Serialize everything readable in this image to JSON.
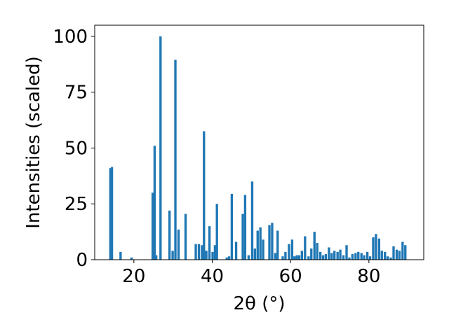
{
  "chart_data": {
    "type": "bar",
    "title": "",
    "xlabel": "2θ (°)",
    "ylabel": "Intensities (scaled)",
    "xlim": [
      10,
      94
    ],
    "ylim": [
      0,
      105
    ],
    "xticks": [
      20,
      40,
      60,
      80
    ],
    "yticks": [
      0,
      25,
      50,
      75,
      100
    ],
    "grid": false,
    "bar_color": "#1f77b4",
    "bar_width": 0.6,
    "x": [
      14.0,
      14.4,
      16.6,
      19.4,
      24.8,
      25.3,
      25.7,
      26.8,
      29.1,
      29.9,
      30.6,
      31.4,
      33.2,
      35.8,
      36.6,
      37.4,
      37.9,
      38.5,
      39.3,
      40.1,
      40.7,
      41.2,
      43.7,
      44.3,
      45.0,
      46.1,
      47.8,
      48.4,
      49.3,
      50.2,
      50.9,
      51.6,
      52.3,
      53.0,
      54.6,
      55.3,
      56.1,
      56.7,
      58.0,
      58.7,
      59.6,
      60.4,
      61.0,
      61.6,
      62.2,
      62.9,
      63.7,
      64.6,
      65.3,
      66.1,
      66.8,
      67.6,
      68.3,
      69.0,
      69.8,
      70.5,
      71.2,
      72.0,
      72.7,
      73.5,
      74.3,
      75.0,
      75.8,
      76.6,
      77.3,
      78.1,
      78.8,
      79.6,
      80.3,
      81.1,
      81.8,
      82.6,
      83.3,
      84.1,
      84.8,
      85.6,
      86.3,
      87.1,
      87.8,
      88.6,
      89.3
    ],
    "values": [
      41,
      41.5,
      3.5,
      1,
      30,
      51,
      2,
      100,
      22,
      4,
      89.5,
      13.5,
      20.5,
      7,
      7,
      6.5,
      57.5,
      4,
      15,
      3.5,
      6.5,
      25,
      1,
      1.5,
      29.5,
      8,
      20.5,
      29,
      2,
      35,
      5,
      13,
      14.5,
      9,
      15.5,
      16.5,
      3,
      13,
      1.5,
      3.5,
      7,
      9,
      1.5,
      2,
      2,
      4,
      10.5,
      1.5,
      5,
      12.5,
      7.5,
      3.5,
      2,
      2.5,
      5.5,
      3,
      4,
      3.5,
      4.5,
      2,
      6.5,
      1,
      2.5,
      3,
      3.5,
      3,
      2,
      3.5,
      1.5,
      10,
      11.5,
      9.5,
      4,
      3.5,
      1.5,
      1,
      6,
      4.5,
      4,
      8,
      6.5
    ]
  }
}
